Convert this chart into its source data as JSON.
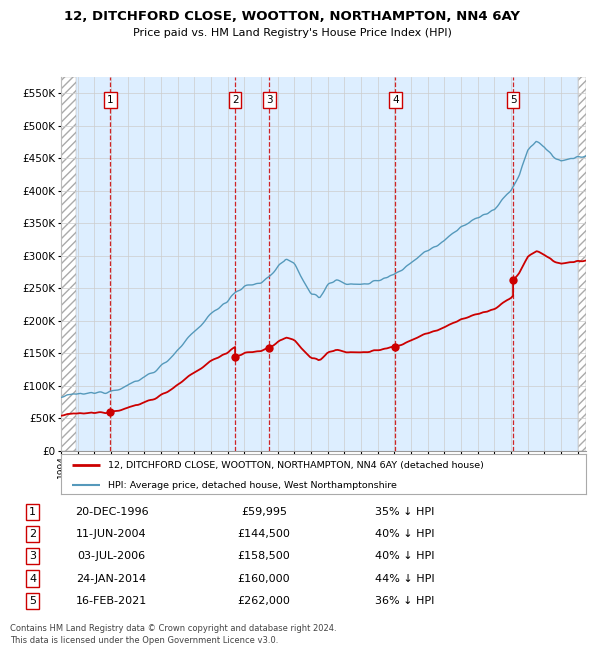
{
  "title": "12, DITCHFORD CLOSE, WOOTTON, NORTHAMPTON, NN4 6AY",
  "subtitle": "Price paid vs. HM Land Registry's House Price Index (HPI)",
  "sale_prices": [
    59995,
    144500,
    158500,
    160000,
    262000
  ],
  "sale_labels": [
    "1",
    "2",
    "3",
    "4",
    "5"
  ],
  "sale_info": [
    "20-DEC-1996",
    "11-JUN-2004",
    "03-JUL-2006",
    "24-JAN-2014",
    "16-FEB-2021"
  ],
  "sale_price_str": [
    "£59,995",
    "£144,500",
    "£158,500",
    "£160,000",
    "£262,000"
  ],
  "sale_pct": [
    "35%",
    "40%",
    "40%",
    "44%",
    "36%"
  ],
  "hpi_label": "HPI: Average price, detached house, West Northamptonshire",
  "property_label": "12, DITCHFORD CLOSE, WOOTTON, NORTHAMPTON, NN4 6AY (detached house)",
  "red_color": "#cc0000",
  "blue_color": "#5599bb",
  "grid_color": "#cccccc",
  "ylim": [
    0,
    575000
  ],
  "yticks": [
    0,
    50000,
    100000,
    150000,
    200000,
    250000,
    300000,
    350000,
    400000,
    450000,
    500000,
    550000
  ],
  "footer": "Contains HM Land Registry data © Crown copyright and database right 2024.\nThis data is licensed under the Open Government Licence v3.0.",
  "bg_color": "#ddeeff"
}
